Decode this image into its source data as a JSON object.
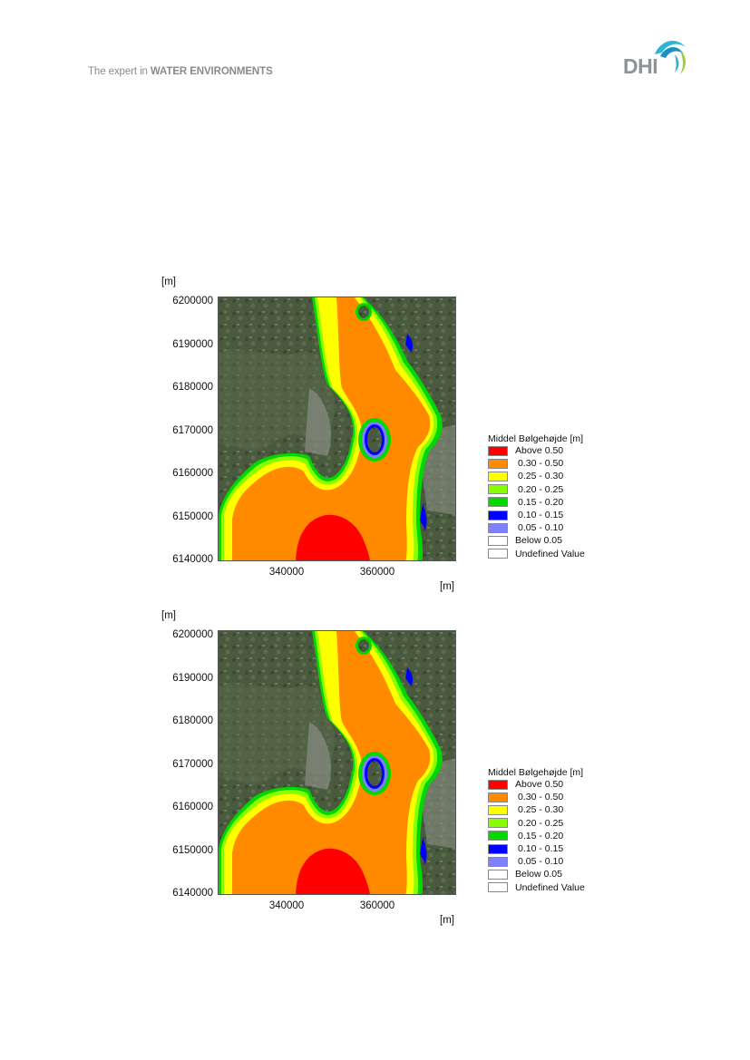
{
  "header": {
    "tagline_prefix": "The expert in ",
    "tagline_bold": "WATER ENVIRONMENTS",
    "logo_text": "DHI"
  },
  "colors": {
    "land": "#4a5a3e",
    "urban": "#8a8d84",
    "orange": "#ff8a00",
    "red": "#ff0000",
    "yellow": "#ffff00",
    "lightgreen": "#88ff00",
    "green": "#00d800",
    "blue": "#0000ff",
    "lightblue": "#8080ff"
  },
  "figures": [
    {
      "y_unit": "[m]",
      "x_unit": "[m]",
      "y_ticks": [
        "6200000",
        "6190000",
        "6180000",
        "6170000",
        "6160000",
        "6150000",
        "6140000"
      ],
      "x_ticks": [
        "340000",
        "360000"
      ],
      "legend": {
        "title": "Middel Bølgehøjde [m]",
        "items": [
          {
            "label": "Above 0.50",
            "color": "#ff0000"
          },
          {
            "label": "0.30 - 0.50",
            "color": "#ff8a00"
          },
          {
            "label": "0.25 - 0.30",
            "color": "#ffff00"
          },
          {
            "label": "0.20 - 0.25",
            "color": "#88ff00"
          },
          {
            "label": "0.15 - 0.20",
            "color": "#00d800"
          },
          {
            "label": "0.10 - 0.15",
            "color": "#0000ff"
          },
          {
            "label": "0.05 - 0.10",
            "color": "#8080ff"
          },
          {
            "label": "Below 0.05",
            "color": "#ffffff"
          },
          {
            "label": "Undefined Value",
            "color": "#ffffff"
          }
        ]
      }
    },
    {
      "y_unit": "[m]",
      "x_unit": "[m]",
      "y_ticks": [
        "6200000",
        "6190000",
        "6180000",
        "6170000",
        "6160000",
        "6150000",
        "6140000"
      ],
      "x_ticks": [
        "340000",
        "360000"
      ],
      "legend": {
        "title": "Middel Bølgehøjde [m]",
        "items": [
          {
            "label": "Above 0.50",
            "color": "#ff0000"
          },
          {
            "label": "0.30 - 0.50",
            "color": "#ff8a00"
          },
          {
            "label": "0.25 - 0.30",
            "color": "#ffff00"
          },
          {
            "label": "0.20 - 0.25",
            "color": "#88ff00"
          },
          {
            "label": "0.15 - 0.20",
            "color": "#00d800"
          },
          {
            "label": "0.10 - 0.15",
            "color": "#0000ff"
          },
          {
            "label": "0.05 - 0.10",
            "color": "#8080ff"
          },
          {
            "label": "Below 0.05",
            "color": "#ffffff"
          },
          {
            "label": "Undefined Value",
            "color": "#ffffff"
          }
        ]
      }
    }
  ]
}
